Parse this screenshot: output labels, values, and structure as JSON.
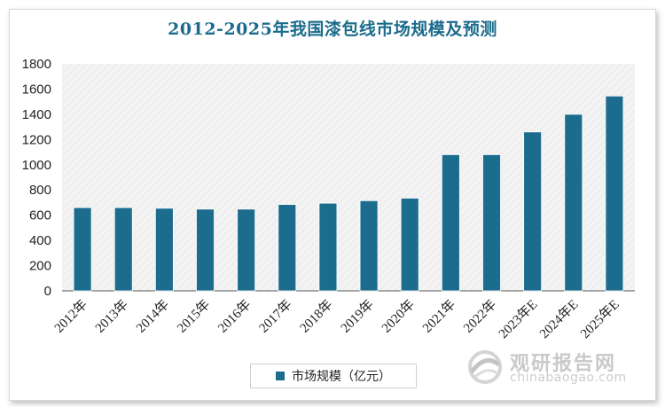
{
  "chart_data": {
    "type": "bar",
    "title": "2012-2025年我国漆包线市场规模及预测",
    "categories": [
      "2012年",
      "2013年",
      "2014年",
      "2015年",
      "2016年",
      "2017年",
      "2018年",
      "2019年",
      "2020年",
      "2021年",
      "2022年",
      "2023年E",
      "2024年E",
      "2025年E"
    ],
    "series": [
      {
        "name": "市场规模（亿元）",
        "values": [
          660,
          660,
          655,
          648,
          648,
          685,
          695,
          715,
          735,
          1080,
          1080,
          1260,
          1400,
          1545
        ]
      }
    ],
    "ylim": [
      0,
      1800
    ],
    "yticks": [
      0,
      200,
      400,
      600,
      800,
      1000,
      1200,
      1400,
      1600,
      1800
    ],
    "grid": false,
    "legend_position": "bottom",
    "colors": {
      "bar": "#1b6c8d",
      "title": "#1b6c8d",
      "plot_background": "#f2f2f2"
    }
  },
  "watermark": {
    "name": "观研报告网",
    "url": "chinabaogao.com",
    "icon": "logo-swirl-icon"
  }
}
